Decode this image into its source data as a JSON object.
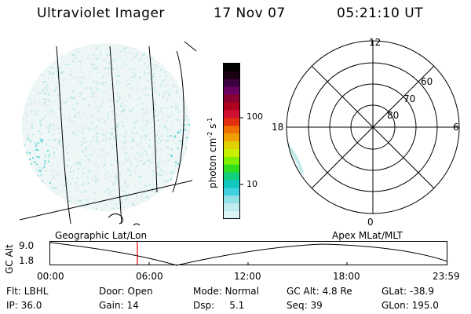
{
  "header": {
    "instrument": "Ultraviolet Imager",
    "date": "17 Nov 07",
    "time": "05:21:10 UT"
  },
  "colorbar": {
    "unit": "photon cm",
    "unit_exp1": "-2",
    "unit_mid": "s",
    "unit_exp2": "-1",
    "ticks": [
      "100",
      "10"
    ],
    "colors": [
      "#000000",
      "#1a0010",
      "#3d0040",
      "#6a0060",
      "#8a0030",
      "#b00020",
      "#d01030",
      "#e03010",
      "#f07000",
      "#f0a000",
      "#e0d000",
      "#c8f000",
      "#80f000",
      "#30e020",
      "#10d080",
      "#10c8c0",
      "#40d0e0",
      "#90e0e8",
      "#c0ecf0",
      "#dcf4f6"
    ]
  },
  "geo_map": {
    "label": "Geographic Lat/Lon"
  },
  "polar_plot": {
    "label": "Apex MLat/MLT",
    "mlt_labels": [
      "12",
      "18",
      "6",
      "0"
    ],
    "mlat_labels": [
      "60",
      "70",
      "80"
    ]
  },
  "altitude_plot": {
    "axis_label": "GC Alt",
    "y_max": "9.0",
    "y_min": "1.8",
    "time_ticks": [
      "00:00",
      "06:00",
      "12:00",
      "18:00",
      "23:59"
    ]
  },
  "footer": {
    "flt": "Flt: LBHL",
    "ip": "IP: 36.0",
    "door": "Door: Open",
    "gain": "Gain: 14",
    "mode": "Mode: Normal",
    "dsp": "Dsp:     5.1",
    "gcalt": "GC Alt: 4.8 Re",
    "seq": "Seq: 39",
    "glat": "GLat: -38.9",
    "glon": "GLon: 195.0"
  },
  "colors": {
    "marker": "#dd0000",
    "aurora": "#9fe6e6"
  }
}
